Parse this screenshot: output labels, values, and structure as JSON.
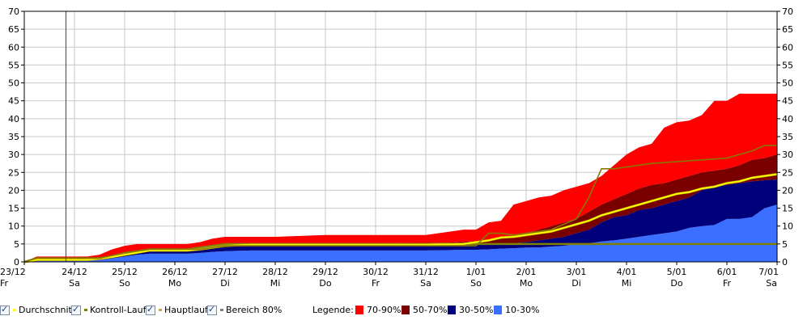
{
  "chart_data": {
    "type": "area",
    "ylim": [
      0,
      70
    ],
    "y_ticks": [
      "0",
      "5",
      "10",
      "15",
      "20",
      "25",
      "30",
      "35",
      "40",
      "45",
      "50",
      "55",
      "60",
      "65",
      "70"
    ],
    "x_range": [
      0,
      15
    ],
    "x_ticks": [
      {
        "date": "23/12",
        "day": "Fr"
      },
      {
        "date": "24/12",
        "day": "Sa"
      },
      {
        "date": "25/12",
        "day": "So"
      },
      {
        "date": "26/12",
        "day": "Mo"
      },
      {
        "date": "27/12",
        "day": "Di"
      },
      {
        "date": "28/12",
        "day": "Mi"
      },
      {
        "date": "29/12",
        "day": "Do"
      },
      {
        "date": "30/12",
        "day": "Fr"
      },
      {
        "date": "31/12",
        "day": "Sa"
      },
      {
        "date": "1/01",
        "day": "So"
      },
      {
        "date": "2/01",
        "day": "Mo"
      },
      {
        "date": "3/01",
        "day": "Di"
      },
      {
        "date": "4/01",
        "day": "Mi"
      },
      {
        "date": "5/01",
        "day": "Do"
      },
      {
        "date": "6/01",
        "day": "Fr"
      },
      {
        "date": "7/01",
        "day": "Sa"
      }
    ],
    "current_time_marker_x": 0.83,
    "grid": true,
    "x": [
      0,
      0.25,
      1,
      1.25,
      1.5,
      1.75,
      2,
      2.25,
      2.5,
      3,
      3.25,
      3.5,
      3.75,
      4,
      4.5,
      5,
      6,
      7,
      8,
      8.5,
      8.75,
      9,
      9.25,
      9.5,
      9.75,
      10,
      10.25,
      10.5,
      10.75,
      11,
      11.25,
      11.5,
      11.75,
      12,
      12.25,
      12.5,
      12.75,
      13,
      13.25,
      13.5,
      13.75,
      14,
      14.25,
      14.5,
      14.75,
      15
    ],
    "bands": [
      {
        "name": "10-30%",
        "color": "#3a6fff",
        "lower": [
          0,
          0,
          0,
          0,
          0,
          0,
          0,
          0,
          0,
          0,
          0,
          0,
          0,
          0,
          0,
          0,
          0,
          0,
          0,
          0,
          0,
          0,
          0,
          0,
          0,
          0,
          0,
          0,
          0,
          0,
          0,
          0,
          0,
          0,
          0,
          0,
          0,
          0,
          0,
          0,
          0,
          0,
          0,
          0,
          0,
          0
        ],
        "upper": [
          0,
          0.3,
          0.3,
          0.3,
          0.5,
          1,
          1.5,
          2,
          2.3,
          2.3,
          2.3,
          2.5,
          2.8,
          3,
          3.2,
          3.2,
          3.2,
          3.2,
          3.2,
          3.3,
          3.4,
          3.4,
          3.5,
          3.7,
          3.8,
          4,
          4,
          4.3,
          4.5,
          5,
          5.2,
          5.7,
          6,
          6.5,
          7,
          7.5,
          8,
          8.5,
          9.5,
          10,
          10.3,
          12,
          12,
          12.5,
          15,
          16
        ]
      },
      {
        "name": "30-50%",
        "color": "#00007a",
        "lower": [
          0,
          0.3,
          0.3,
          0.3,
          0.5,
          1,
          1.5,
          2,
          2.3,
          2.3,
          2.3,
          2.5,
          2.8,
          3,
          3.2,
          3.2,
          3.2,
          3.2,
          3.2,
          3.3,
          3.4,
          3.4,
          3.5,
          3.7,
          3.8,
          4,
          4,
          4.3,
          4.5,
          5,
          5.2,
          5.7,
          6,
          6.5,
          7,
          7.5,
          8,
          8.5,
          9.5,
          10,
          10.3,
          12,
          12,
          12.5,
          15,
          16
        ],
        "upper": [
          0,
          0.8,
          0.8,
          0.8,
          1,
          1.5,
          2.2,
          2.8,
          3.2,
          3.2,
          3.2,
          3.5,
          4,
          4.3,
          4.4,
          4.4,
          4.4,
          4.4,
          4.4,
          4.5,
          4.7,
          4.8,
          5,
          5,
          5.2,
          5.5,
          6,
          6.5,
          7,
          8,
          9,
          11,
          12.5,
          13,
          14.5,
          15,
          16,
          17,
          18,
          20,
          21,
          21.5,
          22,
          22.5,
          22.8,
          23
        ]
      },
      {
        "name": "50-70%",
        "color": "#7a0000",
        "lower": [
          0,
          0.8,
          0.8,
          0.8,
          1,
          1.5,
          2.2,
          2.8,
          3.2,
          3.2,
          3.2,
          3.5,
          4,
          4.3,
          4.4,
          4.4,
          4.4,
          4.4,
          4.4,
          4.5,
          4.7,
          4.8,
          5,
          5,
          5.2,
          5.5,
          6,
          6.5,
          7,
          8,
          9,
          11,
          12.5,
          13,
          14.5,
          15,
          16,
          17,
          18,
          20,
          21,
          21.5,
          22,
          22.5,
          22.8,
          23
        ],
        "upper": [
          0,
          0.9,
          0.9,
          0.9,
          1.2,
          1.8,
          2.6,
          3.2,
          3.7,
          3.7,
          3.7,
          4,
          4.6,
          5,
          5.2,
          5.2,
          5.2,
          5.2,
          5.3,
          5.4,
          5.6,
          5.8,
          6,
          6.5,
          7.5,
          8,
          9,
          10,
          11,
          12,
          14,
          16,
          17.5,
          19,
          20.5,
          21.5,
          22,
          23,
          24,
          25,
          25.5,
          26,
          27,
          28.5,
          29,
          30
        ]
      },
      {
        "name": "70-90%",
        "color": "#ff0000",
        "lower": [
          0,
          0.9,
          0.9,
          0.9,
          1.2,
          1.8,
          2.6,
          3.2,
          3.7,
          3.7,
          3.7,
          4,
          4.6,
          5,
          5.2,
          5.2,
          5.2,
          5.2,
          5.3,
          5.4,
          5.6,
          5.8,
          6,
          6.5,
          7.5,
          8,
          9,
          10,
          11,
          12,
          14,
          16,
          17.5,
          19,
          20.5,
          21.5,
          22,
          23,
          24,
          25,
          25.5,
          26,
          27,
          28.5,
          29,
          30
        ],
        "upper": [
          0,
          1.5,
          1.5,
          1.5,
          2,
          3.5,
          4.5,
          5,
          5,
          5,
          5,
          5.5,
          6.5,
          7,
          7,
          7,
          7.5,
          7.5,
          7.5,
          8.5,
          9,
          9,
          11,
          11.5,
          16,
          17,
          18,
          18.5,
          20,
          21,
          22,
          24,
          27,
          30,
          32,
          33,
          37.5,
          39,
          39.5,
          41,
          45,
          45,
          47,
          47,
          47,
          47
        ]
      }
    ],
    "series": [
      {
        "name": "Durchschnitt",
        "color": "#ffff00",
        "values": [
          0,
          0.6,
          0.6,
          0.6,
          0.9,
          1.4,
          2,
          2.6,
          3.2,
          3.2,
          3.2,
          3.5,
          4,
          4.5,
          4.8,
          4.8,
          4.8,
          4.8,
          4.8,
          4.9,
          5,
          5.5,
          6,
          6.8,
          7,
          7.5,
          8,
          8.5,
          9.5,
          10.5,
          11.5,
          13,
          14,
          15,
          16,
          17,
          18,
          19,
          19.5,
          20.5,
          21,
          22,
          22.5,
          23.5,
          24,
          24.5
        ]
      },
      {
        "name": "Kontroll-Lauf",
        "color": "#808000",
        "values": [
          0,
          1,
          1,
          1,
          1,
          1.5,
          2.5,
          3,
          3.5,
          3.5,
          3.5,
          4,
          4.5,
          5,
          5,
          5,
          5,
          5,
          5,
          5,
          5,
          5,
          5,
          5,
          5,
          5,
          5,
          5,
          5,
          5,
          5,
          5,
          5,
          5,
          5,
          5,
          5,
          5,
          5,
          5,
          5,
          5,
          5,
          5,
          5,
          5
        ]
      }
    ],
    "hauptlauf": {
      "name": "Hauptlauf",
      "color": "#8a7800",
      "x": [
        0,
        0.25,
        1,
        1.5,
        2,
        2.5,
        3,
        3.5,
        4,
        4.5,
        5,
        6,
        7,
        8,
        9,
        9.25,
        9.5,
        9.75,
        10,
        10.5,
        11,
        11.25,
        11.5,
        11.75,
        12,
        12.5,
        13,
        13.5,
        14,
        14.5,
        14.75,
        15
      ],
      "values": [
        0,
        1,
        1,
        1,
        2.5,
        3.5,
        3.5,
        3.5,
        4.5,
        4.5,
        4.5,
        4.5,
        4.5,
        4.5,
        4.5,
        8,
        8,
        7.5,
        8,
        9,
        12,
        18,
        26,
        26,
        26.5,
        27.5,
        28,
        28.5,
        29,
        31,
        32.5,
        32.5
      ]
    }
  },
  "controls": [
    {
      "label": "Durchschnitt",
      "line_color": "#ffff00",
      "checked": "✓"
    },
    {
      "label": "Kontroll-Lauf",
      "line_color": "#808000",
      "checked": "✓"
    },
    {
      "label": "Hauptlauf",
      "line_color": "#c8a45a",
      "checked": "✓"
    },
    {
      "label": "Bereich 80%",
      "line_color": "#808080",
      "checked": "✓"
    }
  ],
  "legend": {
    "title": "Legende:",
    "items": [
      {
        "label": "70-90%",
        "color": "#ff0000"
      },
      {
        "label": "50-70%",
        "color": "#7a0000"
      },
      {
        "label": "30-50%",
        "color": "#00007a"
      },
      {
        "label": "10-30%",
        "color": "#3a6fff"
      }
    ]
  }
}
